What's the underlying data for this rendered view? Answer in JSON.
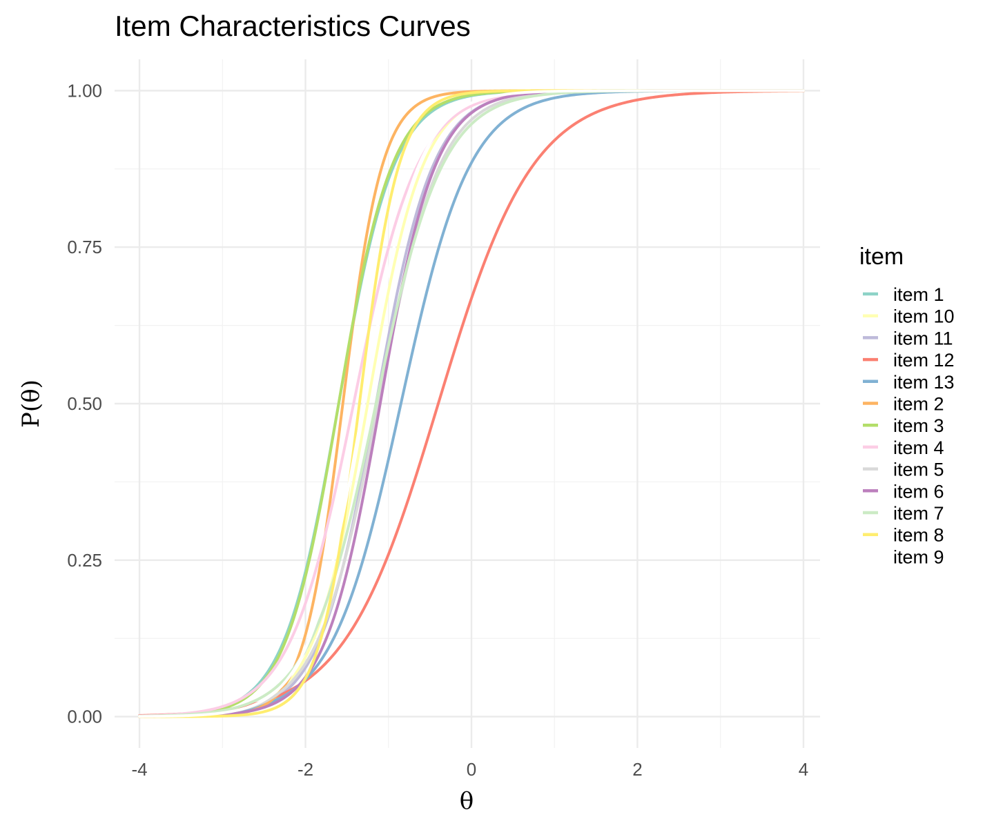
{
  "chart_data": {
    "type": "line",
    "title": "Item Characteristics Curves",
    "xlabel": "θ",
    "ylabel": "P(θ)",
    "xlim": [
      -4.3,
      4.2
    ],
    "ylim": [
      -0.05,
      1.05
    ],
    "x_ticks": [
      -4,
      -2,
      0,
      2,
      4
    ],
    "x_tick_labels": [
      "-4",
      "-2",
      "0",
      "2",
      "4"
    ],
    "y_ticks": [
      0,
      0.25,
      0.5,
      0.75,
      1
    ],
    "y_tick_labels": [
      "0.00",
      "0.25",
      "0.50",
      "0.75",
      "1.00"
    ],
    "x_minor": [
      -3,
      -1,
      1,
      3
    ],
    "y_minor": [
      0.125,
      0.375,
      0.625,
      0.875
    ],
    "grid": true,
    "legend_title": "item",
    "legend_position": "right",
    "series": [
      {
        "name": "item 1",
        "color": "#8DD3C7",
        "b": -1.6,
        "a": 3.0
      },
      {
        "name": "item 10",
        "color": "#FFFFB3",
        "b": -1.25,
        "a": 3.0
      },
      {
        "name": "item 11",
        "color": "#BEBADA",
        "b": -1.15,
        "a": 2.9
      },
      {
        "name": "item 12",
        "color": "#FB8072",
        "b": -0.4,
        "a": 1.75
      },
      {
        "name": "item 13",
        "color": "#80B1D3",
        "b": -0.85,
        "a": 2.4
      },
      {
        "name": "item 2",
        "color": "#FDB462",
        "b": -1.55,
        "a": 4.2
      },
      {
        "name": "item 3",
        "color": "#B3DE69",
        "b": -1.6,
        "a": 3.1
      },
      {
        "name": "item 4",
        "color": "#FCCDE5",
        "b": -1.42,
        "a": 2.6
      },
      {
        "name": "item 5",
        "color": "#D9D9D9",
        "b": -1.12,
        "a": 2.7
      },
      {
        "name": "item 6",
        "color": "#BC80BD",
        "b": -1.1,
        "a": 3.0
      },
      {
        "name": "item 7",
        "color": "#CCEBC5",
        "b": -1.15,
        "a": 2.5
      },
      {
        "name": "item 8",
        "color": "#FFED6F",
        "b": -1.35,
        "a": 4.2
      },
      {
        "name": "item 9",
        "color": "#FFFFFF",
        "b": -1.3,
        "a": 3.0
      }
    ]
  }
}
